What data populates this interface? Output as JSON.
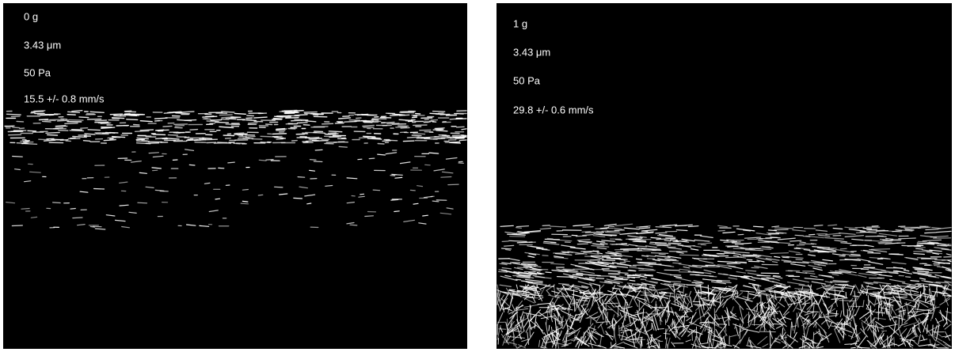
{
  "panels": [
    {
      "gravity": "0 g",
      "particle_size": "3.43 μm",
      "pressure": "50 Pa",
      "velocity": "15.5 +/- 0.8 mm/s"
    },
    {
      "gravity": "1 g",
      "particle_size": "3.43 μm",
      "pressure": "50 Pa",
      "velocity": "29.8 +/- 0.6 mm/s"
    }
  ]
}
